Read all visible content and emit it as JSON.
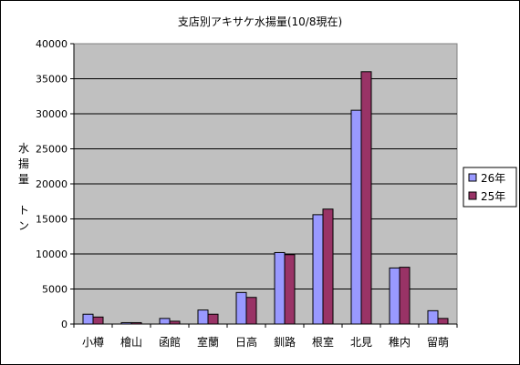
{
  "chart_data": {
    "type": "bar",
    "title": "支店別アキサケ水揚量(10/8現在)",
    "ylabel": "水揚量　トン",
    "xlabel": "",
    "categories": [
      "小樽",
      "檜山",
      "函館",
      "室蘭",
      "日高",
      "釧路",
      "根室",
      "北見",
      "稚内",
      "留萌"
    ],
    "series": [
      {
        "name": "26年",
        "color": "#9999ff",
        "values": [
          1400,
          200,
          800,
          2000,
          4500,
          10200,
          15600,
          30500,
          8000,
          1900
        ]
      },
      {
        "name": "25年",
        "color": "#993366",
        "values": [
          1000,
          200,
          400,
          1400,
          3800,
          9900,
          16400,
          36000,
          8100,
          800
        ]
      }
    ],
    "ylim": [
      0,
      40000
    ],
    "yticks": [
      "0",
      "5000",
      "10000",
      "15000",
      "20000",
      "25000",
      "30000",
      "35000",
      "40000"
    ],
    "grid": true,
    "plot_background": "#c0c0c0",
    "legend_position": "right"
  }
}
